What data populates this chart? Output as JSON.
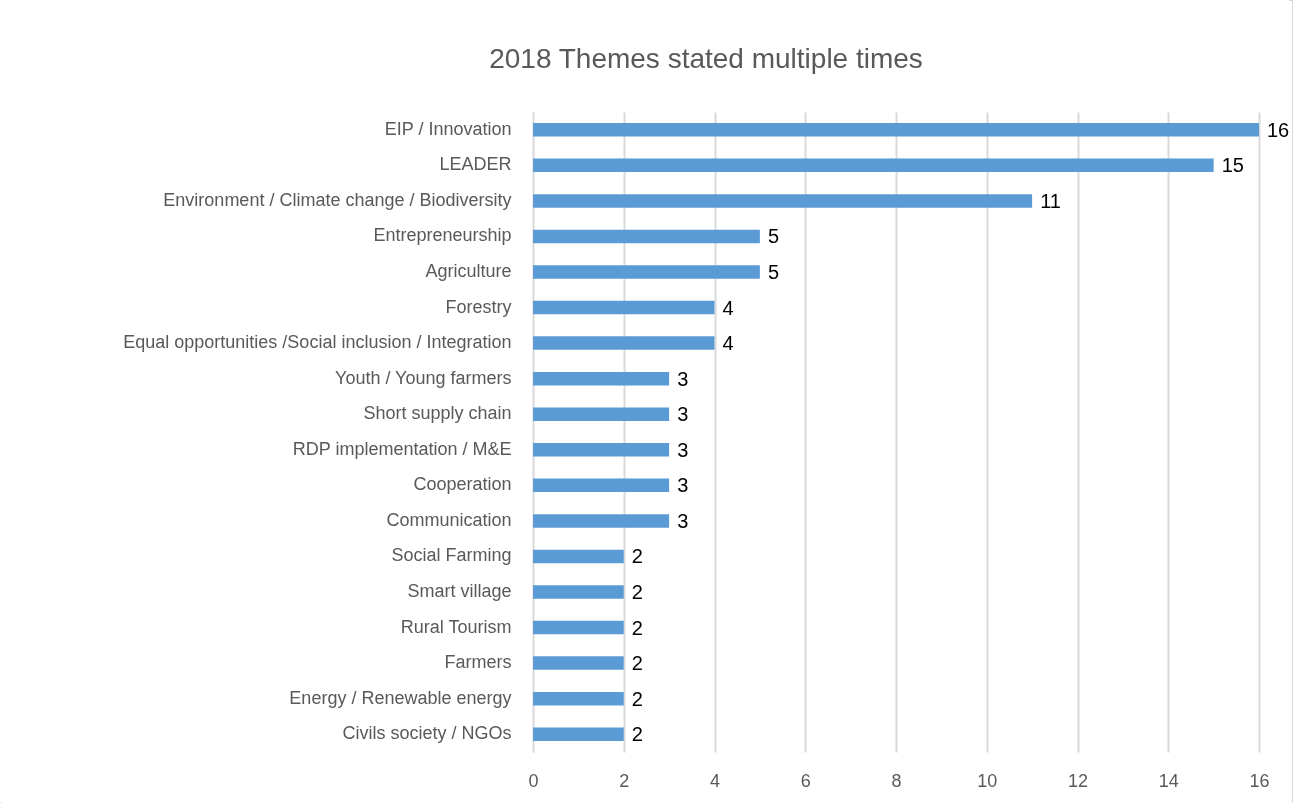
{
  "chart_data": {
    "type": "bar",
    "orientation": "horizontal",
    "title": "2018 Themes stated multiple times",
    "categories": [
      "EIP / Innovation",
      "LEADER",
      "Environment / Climate change / Biodiversity",
      "Entrepreneurship",
      "Agriculture",
      "Forestry",
      "Equal opportunities /Social inclusion / Integration",
      "Youth / Young farmers",
      "Short supply chain",
      "RDP implementation / M&E",
      "Cooperation",
      "Communication",
      "Social Farming",
      "Smart village",
      "Rural Tourism",
      "Farmers",
      "Energy / Renewable energy",
      "Civils society / NGOs"
    ],
    "values": [
      16,
      15,
      11,
      5,
      5,
      4,
      4,
      3,
      3,
      3,
      3,
      3,
      2,
      2,
      2,
      2,
      2,
      2
    ],
    "color": "#5b9bd5",
    "xlim": [
      0,
      16
    ],
    "xticks": [
      0,
      2,
      4,
      6,
      8,
      10,
      12,
      14,
      16
    ],
    "grid": "x",
    "data_labels": true
  }
}
